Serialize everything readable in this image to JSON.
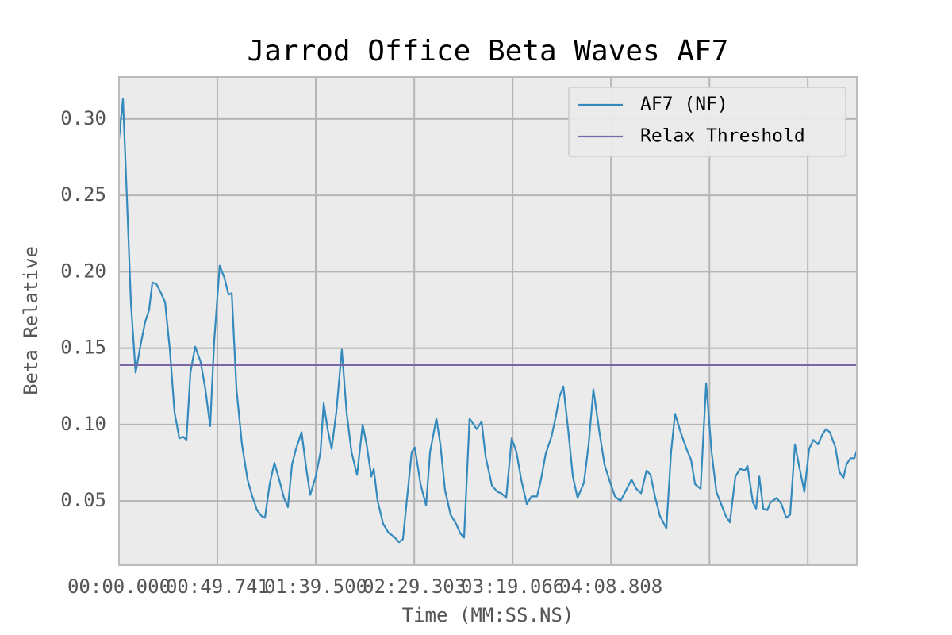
{
  "chart_data": {
    "type": "line",
    "title": "Jarrod Office Beta Waves AF7",
    "x_label": "Time (MM:SS.NS)",
    "y_label": "Beta Relative",
    "xlim": [
      0,
      373.1
    ],
    "ylim": [
      0.008,
      0.3275
    ],
    "xticks": [
      {
        "value": 0,
        "label": "00:00.000"
      },
      {
        "value": 49.741,
        "label": "00:49.741"
      },
      {
        "value": 99.5,
        "label": "01:39.500"
      },
      {
        "value": 149.303,
        "label": "02:29.303"
      },
      {
        "value": 199.066,
        "label": "03:19.066"
      },
      {
        "value": 248.808,
        "label": "04:08.808"
      },
      {
        "value": 298.6,
        "label": null
      },
      {
        "value": 348.3,
        "label": null
      }
    ],
    "yticks": [
      0.05,
      {
        "value": 0.1,
        "label": "0.10"
      },
      0.15,
      {
        "value": 0.2,
        "label": "0.20"
      },
      0.25,
      {
        "value": 0.3,
        "label": "0.30"
      }
    ],
    "grid": true,
    "legend_position": "upper right",
    "series": [
      {
        "name": "AF7 (NF)",
        "color": "#348abd",
        "x": [
          0,
          2.0,
          4.0,
          6.0,
          8.4,
          11.2,
          13.2,
          15.2,
          16.9,
          18.9,
          20.9,
          23.3,
          25.7,
          28.1,
          30.5,
          32.5,
          34.1,
          36.1,
          38.5,
          41.3,
          43.7,
          46.1,
          48.1,
          50.9,
          53.3,
          55.4,
          57.0,
          59.4,
          62.2,
          65.0,
          67.4,
          69.8,
          72.2,
          73.8,
          76.2,
          78.6,
          81.0,
          83.4,
          85.4,
          87.5,
          89.5,
          92.3,
          94.7,
          96.7,
          99.5,
          101.9,
          103.5,
          105.5,
          107.5,
          109.9,
          112.7,
          115.1,
          117.6,
          120.4,
          123.2,
          125.2,
          127.6,
          128.8,
          130.8,
          133.6,
          136.4,
          138.8,
          141.6,
          143.6,
          146.0,
          148.0,
          149.6,
          152.5,
          155.3,
          157.3,
          160.5,
          162.5,
          164.9,
          167.7,
          170.5,
          172.5,
          174.5,
          177.3,
          180.9,
          183.4,
          185.4,
          188.6,
          191.4,
          193.4,
          195.8,
          198.6,
          201.0,
          203.4,
          206.2,
          208.6,
          211.4,
          213.4,
          215.8,
          218.7,
          220.7,
          222.7,
          224.7,
          227.1,
          229.5,
          231.9,
          235.1,
          237.5,
          239.9,
          242.7,
          245.5,
          247.9,
          250.8,
          253.6,
          256.0,
          259.2,
          261.6,
          264.0,
          266.8,
          268.8,
          271.2,
          273.6,
          276.8,
          279.2,
          281.2,
          284.0,
          287.3,
          289.3,
          291.3,
          294.1,
          296.9,
          299.7,
          302.1,
          304.5,
          306.9,
          308.9,
          311.7,
          314.1,
          316.5,
          317.8,
          320.6,
          322.2,
          323.8,
          325.8,
          327.8,
          329.4,
          332.6,
          335.0,
          337.4,
          339.4,
          341.8,
          344.2,
          346.6,
          349.0,
          351.1,
          353.5,
          355.5,
          357.5,
          359.5,
          362.3,
          364.3,
          366.3,
          367.9,
          369.9,
          371.9,
          373.1
        ],
        "values": [
          0.287,
          0.313,
          0.248,
          0.18,
          0.134,
          0.154,
          0.167,
          0.175,
          0.193,
          0.192,
          0.187,
          0.18,
          0.149,
          0.108,
          0.091,
          0.092,
          0.09,
          0.134,
          0.151,
          0.141,
          0.123,
          0.099,
          0.154,
          0.204,
          0.196,
          0.185,
          0.186,
          0.123,
          0.087,
          0.064,
          0.053,
          0.044,
          0.04,
          0.039,
          0.061,
          0.075,
          0.064,
          0.052,
          0.046,
          0.074,
          0.084,
          0.095,
          0.071,
          0.054,
          0.066,
          0.082,
          0.114,
          0.097,
          0.084,
          0.108,
          0.149,
          0.108,
          0.082,
          0.067,
          0.1,
          0.087,
          0.066,
          0.071,
          0.05,
          0.035,
          0.029,
          0.027,
          0.023,
          0.025,
          0.056,
          0.082,
          0.085,
          0.061,
          0.047,
          0.082,
          0.104,
          0.087,
          0.057,
          0.041,
          0.035,
          0.029,
          0.026,
          0.104,
          0.097,
          0.102,
          0.079,
          0.06,
          0.056,
          0.055,
          0.052,
          0.091,
          0.082,
          0.064,
          0.048,
          0.053,
          0.053,
          0.064,
          0.081,
          0.092,
          0.104,
          0.118,
          0.125,
          0.097,
          0.066,
          0.052,
          0.062,
          0.087,
          0.123,
          0.097,
          0.074,
          0.064,
          0.053,
          0.05,
          0.056,
          0.064,
          0.058,
          0.055,
          0.07,
          0.067,
          0.052,
          0.04,
          0.032,
          0.082,
          0.107,
          0.095,
          0.083,
          0.077,
          0.061,
          0.058,
          0.127,
          0.082,
          0.056,
          0.048,
          0.04,
          0.036,
          0.066,
          0.071,
          0.07,
          0.073,
          0.049,
          0.045,
          0.066,
          0.045,
          0.044,
          0.049,
          0.052,
          0.048,
          0.039,
          0.041,
          0.087,
          0.071,
          0.056,
          0.084,
          0.09,
          0.087,
          0.093,
          0.097,
          0.095,
          0.085,
          0.069,
          0.065,
          0.074,
          0.078,
          0.078,
          0.083
        ]
      },
      {
        "name": "Relax Threshold",
        "color": "#7a68a6",
        "value": 0.139
      }
    ]
  }
}
